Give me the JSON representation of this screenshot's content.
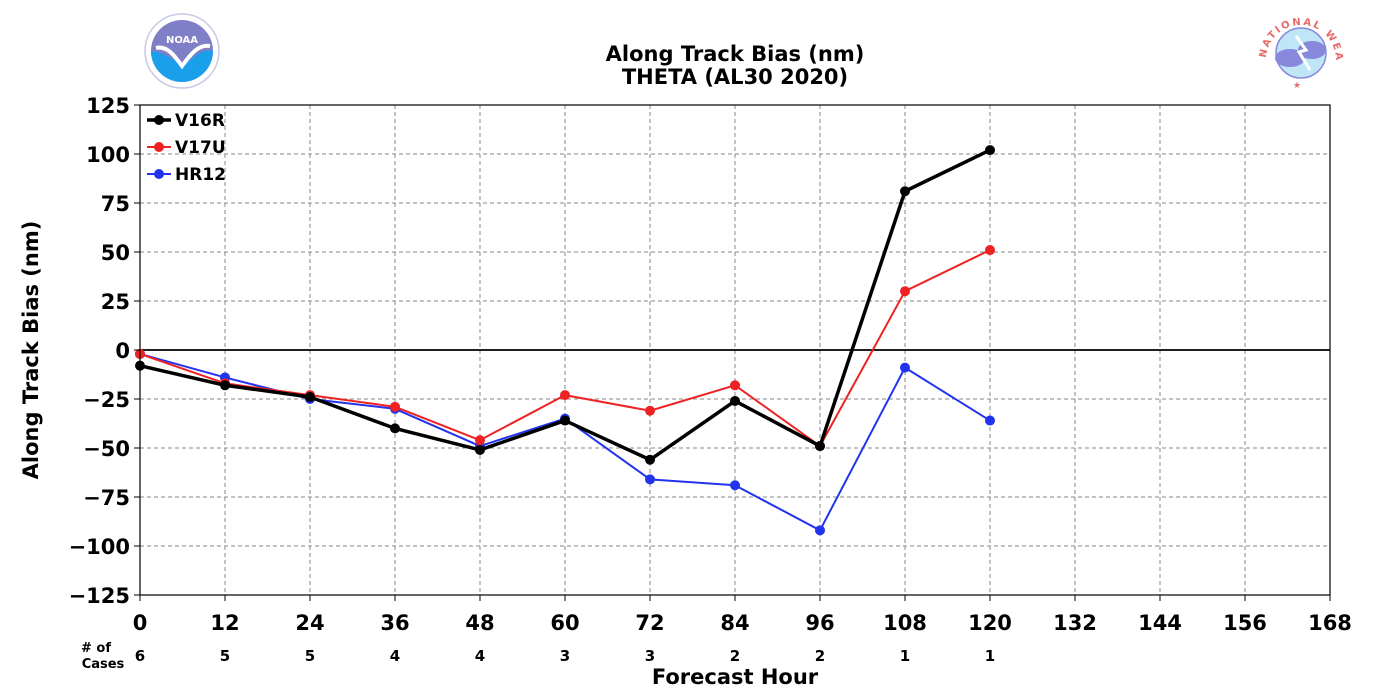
{
  "chart_data": {
    "type": "line",
    "title": "Along Track Bias (nm)",
    "subtitle": "THETA (AL30 2020)",
    "xlabel": "Forecast Hour",
    "ylabel": "Along Track Bias (nm)",
    "xlim": [
      0,
      168
    ],
    "ylim": [
      -125,
      125
    ],
    "x_ticks": [
      0,
      12,
      24,
      36,
      48,
      60,
      72,
      84,
      96,
      108,
      120,
      132,
      144,
      156,
      168
    ],
    "y_ticks": [
      -125,
      -100,
      -75,
      -50,
      -25,
      0,
      25,
      50,
      75,
      100,
      125
    ],
    "y_tick_labels": [
      "−125",
      "−100",
      "−75",
      "−50",
      "−25",
      "0",
      "25",
      "50",
      "75",
      "100",
      "125"
    ],
    "grid": true,
    "legend_position": "top-left",
    "x": [
      0,
      12,
      24,
      36,
      48,
      60,
      72,
      84,
      96,
      108,
      120
    ],
    "series": [
      {
        "name": "V16R",
        "color": "#000000",
        "values": [
          -8,
          -18,
          -24,
          -40,
          -51,
          -36,
          -56,
          -26,
          -49,
          81,
          102
        ]
      },
      {
        "name": "V17U",
        "color": "#ee2222",
        "values": [
          -2,
          -17,
          -23,
          -29,
          -46,
          -23,
          -31,
          -18,
          -49,
          30,
          51
        ]
      },
      {
        "name": "HR12",
        "color": "#2233ee",
        "values": [
          -2,
          -14,
          -25,
          -30,
          -49,
          -35,
          -66,
          -69,
          -92,
          -9,
          -36
        ]
      }
    ],
    "cases_label": "# of Cases",
    "cases_label_lines": [
      "# of",
      "Cases"
    ],
    "cases": [
      6,
      5,
      5,
      4,
      4,
      3,
      3,
      2,
      2,
      1,
      1
    ]
  },
  "logos": {
    "left": {
      "name": "noaa-logo",
      "text": "NOAA",
      "primary": "#1a9ae0",
      "secondary": "#7f7fc8"
    },
    "right": {
      "name": "nws-logo",
      "text": "NATIONAL WEATHER SERVICE",
      "primary": "#e86a6a",
      "secondary": "#8888dd"
    }
  }
}
